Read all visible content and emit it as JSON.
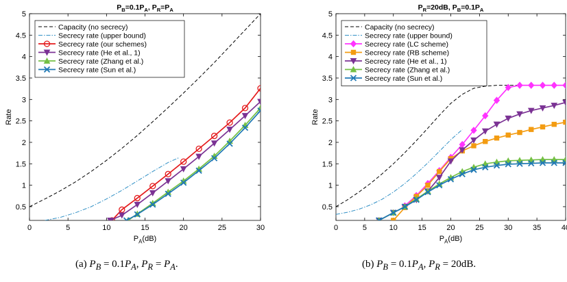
{
  "chart_data": [
    {
      "type": "line",
      "title": "P_B=0.1P_A, P_R=P_A",
      "title_parts": {
        "p1": "P",
        "s1": "B",
        "p2": "=0.1P",
        "s2": "A",
        "p3": ", P",
        "s3": "R",
        "p4": "=P",
        "s4": "A"
      },
      "xlabel": "P_A(dB)",
      "xlabel_parts": {
        "p1": "P",
        "s1": "A",
        "p2": "(dB)"
      },
      "ylabel": "Rate",
      "xlim": [
        0,
        30
      ],
      "ylim": [
        0.18,
        5
      ],
      "xticks": [
        "0",
        "5",
        "10",
        "15",
        "20",
        "25",
        "30"
      ],
      "yticks": [
        "0.5",
        "1",
        "1.5",
        "2",
        "2.5",
        "3",
        "3.5",
        "4",
        "4.5",
        "5"
      ],
      "legend_position": "top-left",
      "caption": {
        "label": "(a)",
        "math": "P_B = 0.1P_A, P_R = P_A."
      },
      "series": [
        {
          "name": "Capacity (no secrecy)",
          "color": "#000000",
          "style": "dashed",
          "marker": "none",
          "x": [
            0,
            2,
            4,
            6,
            8,
            10,
            12,
            14,
            16,
            18,
            20,
            22,
            24,
            26,
            28,
            30
          ],
          "y": [
            0.5,
            0.68,
            0.87,
            1.08,
            1.32,
            1.58,
            1.86,
            2.16,
            2.48,
            2.81,
            3.15,
            3.5,
            3.86,
            4.24,
            4.62,
            5.0
          ]
        },
        {
          "name": "Secrecy rate (upper bound)",
          "color": "#2f8fc5",
          "style": "dashdot",
          "marker": "none",
          "x": [
            2,
            4,
            6,
            8,
            10,
            12,
            14,
            16,
            18,
            19.5
          ],
          "y": [
            0.18,
            0.25,
            0.36,
            0.5,
            0.68,
            0.88,
            1.1,
            1.32,
            1.53,
            1.65
          ]
        },
        {
          "name": "Secrecy rate (our schemes)",
          "color": "#e41a1c",
          "style": "solid",
          "marker": "circle",
          "x": [
            10.7,
            12,
            14,
            16,
            18,
            20,
            22,
            24,
            26,
            28,
            30
          ],
          "y": [
            0.18,
            0.43,
            0.7,
            0.98,
            1.26,
            1.55,
            1.85,
            2.15,
            2.46,
            2.8,
            3.26
          ]
        },
        {
          "name": "Secrecy rate (He et al., 1)",
          "color": "#7b3294",
          "style": "solid",
          "marker": "triangle-down",
          "x": [
            10.5,
            12,
            14,
            16,
            18,
            20,
            22,
            24,
            26,
            28,
            30
          ],
          "y": [
            0.18,
            0.3,
            0.55,
            0.82,
            1.1,
            1.38,
            1.67,
            1.98,
            2.3,
            2.62,
            2.95
          ]
        },
        {
          "name": "Secrecy rate (Zhang et al.)",
          "color": "#74c044",
          "style": "solid",
          "marker": "triangle-up",
          "x": [
            12.8,
            14,
            16,
            18,
            20,
            22,
            24,
            26,
            28,
            30
          ],
          "y": [
            0.18,
            0.33,
            0.58,
            0.84,
            1.1,
            1.38,
            1.68,
            2.03,
            2.4,
            2.8
          ]
        },
        {
          "name": "Secrecy rate (Sun et al.)",
          "color": "#1f78b4",
          "style": "solid",
          "marker": "x",
          "x": [
            12.6,
            14,
            16,
            18,
            20,
            22,
            24,
            26,
            28,
            30
          ],
          "y": [
            0.18,
            0.32,
            0.55,
            0.8,
            1.06,
            1.34,
            1.63,
            1.97,
            2.34,
            2.74
          ]
        }
      ]
    },
    {
      "type": "line",
      "title": "P_R=20dB, P_B=0.1P_A",
      "title_parts": {
        "p1": "P",
        "s1": "R",
        "p2": "=20dB, P",
        "s2": "B",
        "p3": "=0.1P",
        "s3": "A",
        "p4": "",
        "s4": ""
      },
      "xlabel": "P_A(dB)",
      "xlabel_parts": {
        "p1": "P",
        "s1": "A",
        "p2": "(dB)"
      },
      "ylabel": "Rate",
      "xlim": [
        0,
        40
      ],
      "ylim": [
        0.18,
        5
      ],
      "xticks": [
        "0",
        "5",
        "10",
        "15",
        "20",
        "25",
        "30",
        "35",
        "40"
      ],
      "yticks": [
        "0.5",
        "1",
        "1.5",
        "2",
        "2.5",
        "3",
        "3.5",
        "4",
        "4.5",
        "5"
      ],
      "legend_position": "top-left",
      "caption": {
        "label": "(b)",
        "math": "P_B = 0.1P_A, P_R = 20dB."
      },
      "series": [
        {
          "name": "Capacity (no secrecy)",
          "color": "#000000",
          "style": "dashed",
          "marker": "none",
          "x": [
            0,
            2,
            4,
            6,
            8,
            10,
            12,
            14,
            16,
            18,
            20,
            22,
            24,
            26,
            28,
            29.5,
            30,
            32,
            35,
            38,
            40
          ],
          "y": [
            0.5,
            0.66,
            0.84,
            1.04,
            1.26,
            1.5,
            1.76,
            2.04,
            2.33,
            2.63,
            2.91,
            3.12,
            3.26,
            3.31,
            3.33,
            3.33,
            3.33,
            3.33,
            3.33,
            3.33,
            3.33
          ]
        },
        {
          "name": "Secrecy rate (upper bound)",
          "color": "#2f8fc5",
          "style": "dashdot",
          "marker": "none",
          "x": [
            0,
            2,
            4,
            6,
            8,
            10,
            12,
            14,
            16,
            18,
            20,
            22
          ],
          "y": [
            0.32,
            0.37,
            0.44,
            0.54,
            0.67,
            0.84,
            1.04,
            1.27,
            1.52,
            1.79,
            2.06,
            2.3
          ]
        },
        {
          "name": "Secrecy rate (LC scheme)",
          "color": "#ff33ff",
          "style": "solid",
          "marker": "diamond",
          "x": [
            12,
            14,
            16,
            18,
            20,
            22,
            24,
            26,
            28,
            30,
            32,
            34,
            36,
            38,
            40
          ],
          "y": [
            0.52,
            0.76,
            1.04,
            1.34,
            1.65,
            1.95,
            2.28,
            2.62,
            2.98,
            3.28,
            3.33,
            3.33,
            3.33,
            3.33,
            3.33
          ]
        },
        {
          "name": "Secrecy rate (RB scheme)",
          "color": "#f39c12",
          "style": "solid",
          "marker": "square",
          "x": [
            10,
            12,
            14,
            16,
            18,
            20,
            22,
            24,
            26,
            28,
            30,
            32,
            34,
            36,
            38,
            40
          ],
          "y": [
            0.18,
            0.48,
            0.74,
            1.0,
            1.32,
            1.62,
            1.8,
            1.92,
            2.02,
            2.1,
            2.17,
            2.23,
            2.3,
            2.36,
            2.42,
            2.47
          ]
        },
        {
          "name": "Secrecy rate (He et al., 1)",
          "color": "#7b3294",
          "style": "solid",
          "marker": "triangle-down",
          "x": [
            7.5,
            10,
            12,
            14,
            16,
            18,
            20,
            22,
            24,
            26,
            28,
            30,
            32,
            34,
            36,
            38,
            40
          ],
          "y": [
            0.18,
            0.36,
            0.5,
            0.66,
            0.86,
            1.18,
            1.56,
            1.82,
            2.05,
            2.26,
            2.42,
            2.56,
            2.66,
            2.74,
            2.8,
            2.86,
            2.93
          ]
        },
        {
          "name": "Secrecy rate (Zhang et al.)",
          "color": "#74c044",
          "style": "solid",
          "marker": "triangle-up",
          "x": [
            7.5,
            10,
            12,
            14,
            16,
            18,
            20,
            22,
            24,
            26,
            28,
            30,
            32,
            34,
            36,
            38,
            40
          ],
          "y": [
            0.18,
            0.36,
            0.5,
            0.68,
            0.86,
            1.03,
            1.18,
            1.32,
            1.42,
            1.5,
            1.54,
            1.57,
            1.58,
            1.59,
            1.6,
            1.6,
            1.6
          ]
        },
        {
          "name": "Secrecy rate (Sun et al.)",
          "color": "#1f78b4",
          "style": "solid",
          "marker": "x",
          "x": [
            7.5,
            10,
            12,
            14,
            16,
            18,
            20,
            22,
            24,
            26,
            28,
            30,
            32,
            34,
            36,
            38,
            40
          ],
          "y": [
            0.18,
            0.36,
            0.5,
            0.66,
            0.84,
            1.0,
            1.14,
            1.26,
            1.36,
            1.42,
            1.46,
            1.49,
            1.5,
            1.51,
            1.52,
            1.52,
            1.52
          ]
        }
      ]
    }
  ]
}
